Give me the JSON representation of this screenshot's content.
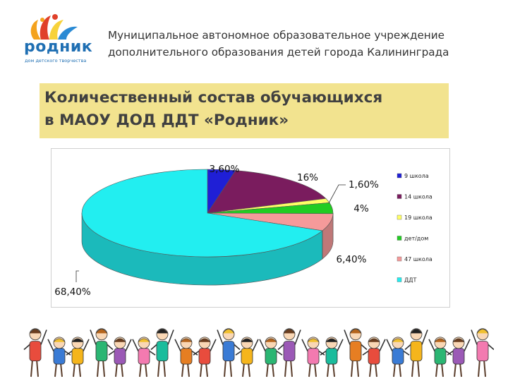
{
  "logo": {
    "word": "родник",
    "subtitle": "дом детского творчества"
  },
  "header": {
    "org_line1": "Муниципальное автономное образовательное учреждение",
    "org_line2": "дополнительного образования детей города Калининграда"
  },
  "slide": {
    "title_line1": "Количественный состав обучающихся",
    "title_line2": "в МАОУ ДОД ДДТ «Родник»"
  },
  "chart_data": {
    "type": "pie",
    "title": "",
    "legend_position": "right",
    "categories": [
      "9 школа",
      "14 школа",
      "19 школа",
      "дет/дом",
      "47 школа",
      "ДДТ"
    ],
    "values": [
      3.6,
      16,
      1.6,
      4,
      6.4,
      68.4
    ],
    "labels": [
      "3,60%",
      "16%",
      "1,60%",
      "4%",
      "6,40%",
      "68,40%"
    ],
    "colors": [
      "#1f1fd6",
      "#7a1c5e",
      "#ffff66",
      "#22cc22",
      "#f59a9a",
      "#22eef0"
    ]
  }
}
